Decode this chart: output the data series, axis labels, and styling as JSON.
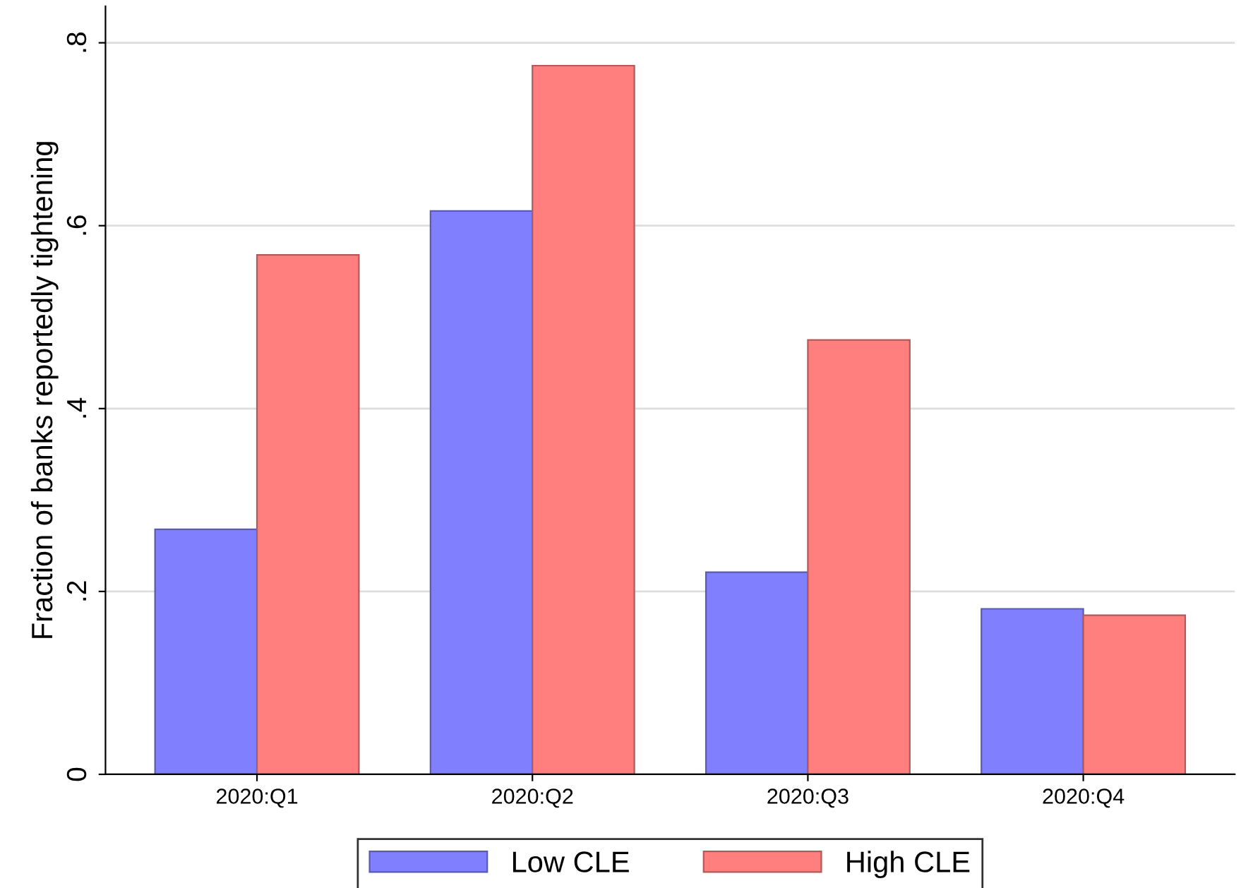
{
  "chart_data": {
    "type": "bar",
    "ylabel": "Fraction of banks reportedly tightening",
    "categories": [
      "2020:Q1",
      "2020:Q2",
      "2020:Q3",
      "2020:Q4"
    ],
    "series": [
      {
        "name": "Low CLE",
        "color": "#8080ff",
        "values": [
          0.268,
          0.616,
          0.221,
          0.181
        ]
      },
      {
        "name": "High CLE",
        "color": "#ff7f7f",
        "values": [
          0.568,
          0.775,
          0.475,
          0.174
        ]
      }
    ],
    "ylim": [
      0,
      0.84
    ],
    "yticks": [
      {
        "value": 0,
        "label": "0"
      },
      {
        "value": 0.2,
        "label": ".2"
      },
      {
        "value": 0.4,
        "label": ".4"
      },
      {
        "value": 0.6,
        "label": ".6"
      },
      {
        "value": 0.8,
        "label": ".8"
      }
    ],
    "grid": "y",
    "legend": "bottom"
  }
}
